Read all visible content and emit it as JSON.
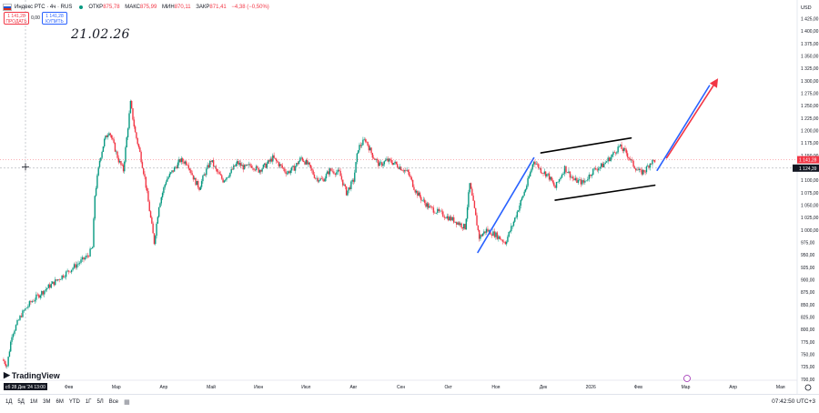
{
  "header": {
    "symbol_label": "Индекс РТС · 4ч · RUS",
    "ohlc": [
      {
        "key": "ОТКР",
        "value": "875,78"
      },
      {
        "key": "МАКС",
        "value": "875,99"
      },
      {
        "key": "МИН",
        "value": "870,11"
      },
      {
        "key": "ЗАКР",
        "value": "871,41"
      }
    ],
    "change": "−4,38 (−0,50%)",
    "icons": {
      "flag": "russia-flag-icon",
      "status": "market-status-dot-icon"
    }
  },
  "trade": {
    "sell_price": "1 141,28",
    "sell_label": "ПРОДАТЬ",
    "spread": "0,00",
    "buy_price": "1 141,28",
    "buy_label": "КУПИТЬ"
  },
  "annotation_text": "21.02.26",
  "crosshair": {
    "date_label": "сб 28 Дек '24  13:00",
    "price_label": "1 124,39"
  },
  "last_price_label": "1 141,28",
  "logo_text": "TradingView",
  "bottom_bar": {
    "timeframes": [
      "1Д",
      "5Д",
      "1М",
      "3М",
      "6М",
      "YTD",
      "1Г",
      "5Л",
      "Все"
    ],
    "calendar_icon": "calendar-range-icon",
    "clock": "07:42:50 UTC+3"
  },
  "chart_data": {
    "type": "candlestick",
    "currency": "USD",
    "y_ticks": [
      "700,00",
      "725,00",
      "750,00",
      "775,00",
      "800,00",
      "825,00",
      "850,00",
      "875,00",
      "900,00",
      "925,00",
      "950,00",
      "975,00",
      "1 000,00",
      "1 025,00",
      "1 050,00",
      "1 075,00",
      "1 100,00",
      "1 125,00",
      "1 150,00",
      "1 175,00",
      "1 200,00",
      "1 225,00",
      "1 250,00",
      "1 275,00",
      "1 300,00",
      "1 325,00",
      "1 350,00",
      "1 375,00",
      "1 400,00",
      "1 425,00"
    ],
    "ylim": [
      698,
      1455
    ],
    "x_ticks": [
      "Фев",
      "Мар",
      "Апр",
      "Май",
      "Июн",
      "Июл",
      "Авг",
      "Сен",
      "Окт",
      "Ноя",
      "Дек",
      "2026",
      "Фев",
      "Мар",
      "Апр",
      "Мая"
    ],
    "x_tick_pos": [
      0.5,
      1.5,
      2.5,
      3.5,
      4.5,
      5.5,
      6.5,
      7.5,
      8.5,
      9.5,
      10.5,
      11.5,
      12.5,
      13.5,
      14.5,
      15.5
    ],
    "xlim": [
      -0.95,
      15.85
    ],
    "price_path": [
      [
        -0.9,
        740
      ],
      [
        -0.8,
        728
      ],
      [
        -0.7,
        790
      ],
      [
        -0.5,
        830
      ],
      [
        -0.3,
        855
      ],
      [
        -0.1,
        872
      ],
      [
        0.1,
        888
      ],
      [
        0.3,
        903
      ],
      [
        0.5,
        918
      ],
      [
        0.7,
        933
      ],
      [
        0.9,
        948
      ],
      [
        1.0,
        965
      ],
      [
        1.05,
        1070
      ],
      [
        1.15,
        1140
      ],
      [
        1.25,
        1180
      ],
      [
        1.35,
        1200
      ],
      [
        1.45,
        1170
      ],
      [
        1.55,
        1140
      ],
      [
        1.65,
        1120
      ],
      [
        1.72,
        1185
      ],
      [
        1.8,
        1255
      ],
      [
        1.9,
        1195
      ],
      [
        2.0,
        1155
      ],
      [
        2.1,
        1105
      ],
      [
        2.2,
        1040
      ],
      [
        2.3,
        975
      ],
      [
        2.4,
        1050
      ],
      [
        2.55,
        1100
      ],
      [
        2.7,
        1120
      ],
      [
        2.85,
        1140
      ],
      [
        3.0,
        1135
      ],
      [
        3.15,
        1100
      ],
      [
        3.25,
        1085
      ],
      [
        3.35,
        1110
      ],
      [
        3.5,
        1140
      ],
      [
        3.6,
        1120
      ],
      [
        3.75,
        1100
      ],
      [
        3.9,
        1115
      ],
      [
        4.05,
        1135
      ],
      [
        4.2,
        1125
      ],
      [
        4.35,
        1130
      ],
      [
        4.5,
        1120
      ],
      [
        4.65,
        1130
      ],
      [
        4.8,
        1145
      ],
      [
        4.95,
        1130
      ],
      [
        5.1,
        1115
      ],
      [
        5.25,
        1125
      ],
      [
        5.4,
        1145
      ],
      [
        5.55,
        1130
      ],
      [
        5.7,
        1105
      ],
      [
        5.85,
        1100
      ],
      [
        6.0,
        1120
      ],
      [
        6.2,
        1115
      ],
      [
        6.35,
        1075
      ],
      [
        6.5,
        1100
      ],
      [
        6.6,
        1165
      ],
      [
        6.75,
        1182
      ],
      [
        6.9,
        1150
      ],
      [
        7.05,
        1130
      ],
      [
        7.2,
        1140
      ],
      [
        7.35,
        1135
      ],
      [
        7.5,
        1125
      ],
      [
        7.65,
        1115
      ],
      [
        7.8,
        1080
      ],
      [
        7.95,
        1060
      ],
      [
        8.1,
        1045
      ],
      [
        8.3,
        1035
      ],
      [
        8.5,
        1025
      ],
      [
        8.7,
        1015
      ],
      [
        8.85,
        1005
      ],
      [
        8.95,
        1092
      ],
      [
        9.05,
        1040
      ],
      [
        9.15,
        985
      ],
      [
        9.3,
        1000
      ],
      [
        9.5,
        990
      ],
      [
        9.7,
        975
      ],
      [
        9.85,
        1010
      ],
      [
        10.0,
        1050
      ],
      [
        10.15,
        1090
      ],
      [
        10.3,
        1140
      ],
      [
        10.45,
        1120
      ],
      [
        10.6,
        1110
      ],
      [
        10.75,
        1085
      ],
      [
        10.95,
        1125
      ],
      [
        11.15,
        1100
      ],
      [
        11.35,
        1095
      ],
      [
        11.55,
        1120
      ],
      [
        11.75,
        1130
      ],
      [
        11.95,
        1150
      ],
      [
        12.1,
        1168
      ],
      [
        12.25,
        1155
      ],
      [
        12.4,
        1130
      ],
      [
        12.55,
        1115
      ],
      [
        12.65,
        1120
      ],
      [
        12.75,
        1135
      ],
      [
        12.85,
        1140
      ]
    ],
    "drawings": [
      {
        "type": "trend_line",
        "color": "#2962ff",
        "from": [
          9.12,
          955
        ],
        "to": [
          10.3,
          1145
        ]
      },
      {
        "type": "channel_line_upper",
        "color": "#000000",
        "from": [
          10.45,
          1155
        ],
        "to": [
          12.35,
          1185
        ]
      },
      {
        "type": "channel_line_lower",
        "color": "#000000",
        "from": [
          10.75,
          1060
        ],
        "to": [
          12.85,
          1090
        ]
      },
      {
        "type": "trend_line",
        "color": "#2962ff",
        "from": [
          12.9,
          1120
        ],
        "to": [
          14.0,
          1290
        ]
      },
      {
        "type": "arrow",
        "color": "#f23645",
        "from": [
          13.1,
          1145
        ],
        "to": [
          14.15,
          1300
        ]
      }
    ]
  }
}
